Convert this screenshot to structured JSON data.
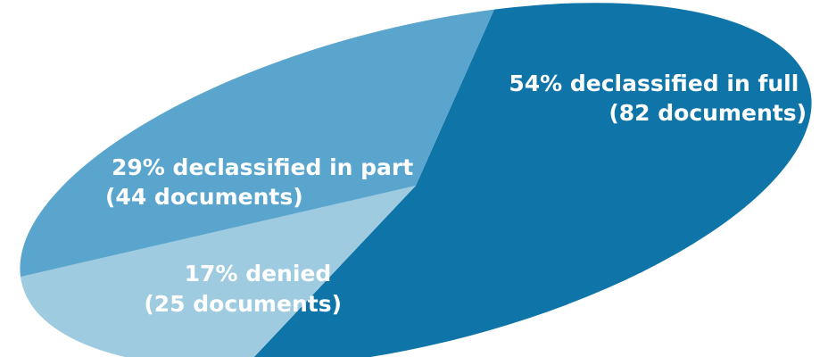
{
  "chart_data": {
    "type": "pie",
    "slices": [
      {
        "percent": 54,
        "count": 82,
        "label": "54% declassified in full",
        "sublabel": "(82 documents)",
        "color": "#0f75a8"
      },
      {
        "percent": 17,
        "count": 25,
        "label": "17% denied",
        "sublabel": "(25 documents)",
        "color": "#9ecbe0"
      },
      {
        "percent": 29,
        "count": 44,
        "label": "29% declassified in part",
        "sublabel": "(44 documents)",
        "color": "#5aa5cd"
      }
    ],
    "title": "",
    "legend": "none",
    "perspective": "tilted-ellipse"
  }
}
